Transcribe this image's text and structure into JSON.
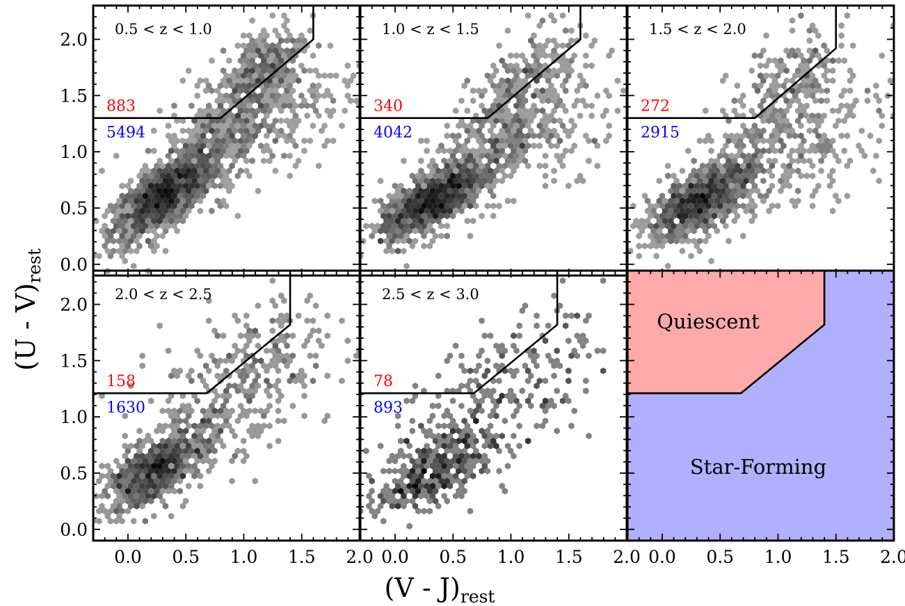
{
  "chart_data": {
    "type": "scatter",
    "subtype": "hexbin density, 6-panel grid (2 rows x 3 columns), shared axes",
    "xlabel": "(V - J)",
    "xlabel_sub": "rest",
    "ylabel": "(U - V)",
    "ylabel_sub": "rest",
    "xlim": [
      -0.3,
      2.0
    ],
    "ylim": [
      -0.1,
      2.3
    ],
    "xticks": [
      0.0,
      0.5,
      1.0,
      1.5,
      2.0
    ],
    "xtick_labels": [
      "0.0",
      "0.5",
      "1.0",
      "1.5",
      "2.0"
    ],
    "yticks": [
      0.0,
      0.5,
      1.0,
      1.5,
      2.0
    ],
    "ytick_labels": [
      "0.0",
      "0.5",
      "1.0",
      "1.5",
      "2.0"
    ],
    "grid": false,
    "colormap": "greys",
    "quiescent_boundary_note": "UVJ selection wedge: horizontal line, diagonal line, vertical line to top",
    "panels": [
      {
        "label": "0.5 < z < 1.0",
        "quiescent_count": "883",
        "star_forming_count": "5494",
        "boundary": [
          [
            -0.3,
            1.3
          ],
          [
            0.8,
            1.3
          ],
          [
            1.6,
            2.0
          ],
          [
            1.6,
            2.3
          ]
        ],
        "density_clusters": [
          {
            "x": 0.3,
            "y": 0.6,
            "sx": 0.22,
            "sy": 0.2,
            "n": 1100,
            "rho": 0.72
          },
          {
            "x": 0.75,
            "y": 1.05,
            "sx": 0.32,
            "sy": 0.3,
            "n": 500,
            "rho": 0.6
          },
          {
            "x": 1.15,
            "y": 1.75,
            "sx": 0.18,
            "sy": 0.22,
            "n": 300,
            "rho": 0.55
          },
          {
            "x": 1.3,
            "y": 1.4,
            "sx": 0.35,
            "sy": 0.3,
            "n": 200,
            "rho": 0.3
          }
        ]
      },
      {
        "label": "1.0 < z < 1.5",
        "quiescent_count": "340",
        "star_forming_count": "4042",
        "boundary": [
          [
            -0.3,
            1.3
          ],
          [
            0.8,
            1.3
          ],
          [
            1.6,
            2.0
          ],
          [
            1.6,
            2.3
          ]
        ],
        "density_clusters": [
          {
            "x": 0.3,
            "y": 0.55,
            "sx": 0.22,
            "sy": 0.17,
            "n": 900,
            "rho": 0.7
          },
          {
            "x": 0.75,
            "y": 0.95,
            "sx": 0.3,
            "sy": 0.28,
            "n": 400,
            "rho": 0.6
          },
          {
            "x": 1.1,
            "y": 1.6,
            "sx": 0.22,
            "sy": 0.25,
            "n": 200,
            "rho": 0.5
          },
          {
            "x": 1.4,
            "y": 1.35,
            "sx": 0.3,
            "sy": 0.3,
            "n": 150,
            "rho": 0.3
          }
        ]
      },
      {
        "label": "1.5 < z < 2.0",
        "quiescent_count": "272",
        "star_forming_count": "2915",
        "boundary": [
          [
            -0.3,
            1.3
          ],
          [
            0.8,
            1.3
          ],
          [
            1.5,
            1.92
          ],
          [
            1.5,
            2.3
          ]
        ],
        "density_clusters": [
          {
            "x": 0.3,
            "y": 0.55,
            "sx": 0.22,
            "sy": 0.17,
            "n": 700,
            "rho": 0.65
          },
          {
            "x": 0.7,
            "y": 0.85,
            "sx": 0.32,
            "sy": 0.3,
            "n": 350,
            "rho": 0.6
          },
          {
            "x": 1.1,
            "y": 1.6,
            "sx": 0.25,
            "sy": 0.27,
            "n": 180,
            "rho": 0.5
          },
          {
            "x": 1.45,
            "y": 1.2,
            "sx": 0.3,
            "sy": 0.35,
            "n": 150,
            "rho": 0.3
          }
        ]
      },
      {
        "label": "2.0 < z < 2.5",
        "quiescent_count": "158",
        "star_forming_count": "1630",
        "boundary": [
          [
            -0.3,
            1.21
          ],
          [
            0.68,
            1.21
          ],
          [
            1.4,
            1.82
          ],
          [
            1.4,
            2.3
          ]
        ],
        "density_clusters": [
          {
            "x": 0.2,
            "y": 0.5,
            "sx": 0.2,
            "sy": 0.17,
            "n": 500,
            "rho": 0.6
          },
          {
            "x": 0.6,
            "y": 0.85,
            "sx": 0.35,
            "sy": 0.3,
            "n": 300,
            "rho": 0.6
          },
          {
            "x": 1.1,
            "y": 1.45,
            "sx": 0.4,
            "sy": 0.3,
            "n": 200,
            "rho": 0.4
          }
        ]
      },
      {
        "label": "2.5 < z < 3.0",
        "quiescent_count": "78",
        "star_forming_count": "893",
        "boundary": [
          [
            -0.3,
            1.21
          ],
          [
            0.68,
            1.21
          ],
          [
            1.4,
            1.82
          ],
          [
            1.4,
            2.3
          ]
        ],
        "density_clusters": [
          {
            "x": 0.3,
            "y": 0.52,
            "sx": 0.22,
            "sy": 0.18,
            "n": 280,
            "rho": 0.5
          },
          {
            "x": 0.75,
            "y": 0.95,
            "sx": 0.4,
            "sy": 0.35,
            "n": 200,
            "rho": 0.5
          },
          {
            "x": 1.2,
            "y": 1.45,
            "sx": 0.4,
            "sy": 0.3,
            "n": 110,
            "rho": 0.3
          }
        ]
      },
      {
        "label": "",
        "kind": "schematic",
        "quiescent_label": "Quiescent",
        "star_forming_label": "Star-Forming",
        "quiescent_color": "#ffaaaa",
        "star_forming_color": "#b0b0ff",
        "boundary": [
          [
            -0.3,
            1.21
          ],
          [
            0.68,
            1.21
          ],
          [
            1.4,
            1.82
          ],
          [
            1.4,
            2.3
          ]
        ]
      }
    ]
  }
}
